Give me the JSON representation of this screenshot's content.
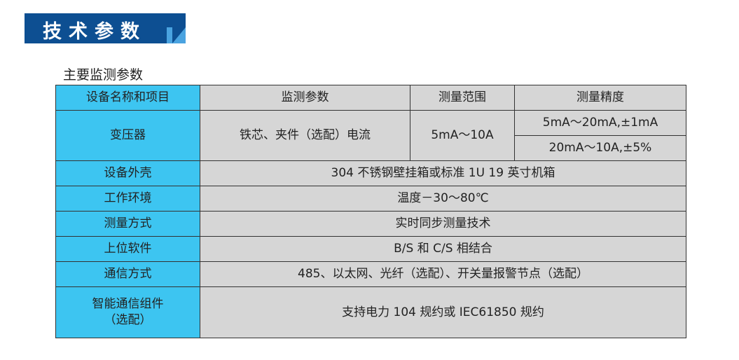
{
  "banner": {
    "title": "技术参数"
  },
  "subtitle": "主要监测参数",
  "table": {
    "headers": [
      "设备名称和项目",
      "监测参数",
      "测量范围",
      "测量精度"
    ],
    "transformer": {
      "name": "变压器",
      "param": "铁芯、夹件（选配）电流",
      "range": "5mA～10A",
      "accuracy": [
        "5mA～20mA,±1mA",
        "20mA～10A,±5%"
      ]
    },
    "rows": [
      {
        "name": "设备外壳",
        "value": "304 不锈钢壁挂箱或标准 1U 19 英寸机箱"
      },
      {
        "name": "工作环境",
        "value": "温度－30～80℃"
      },
      {
        "name": "测量方式",
        "value": "实时同步测量技术"
      },
      {
        "name": "上位软件",
        "value": "B/S 和 C/S 相结合"
      },
      {
        "name": "通信方式",
        "value": "485、以太网、光纤（选配）、开关量报警节点（选配）"
      },
      {
        "name": "智能通信组件\n（选配）",
        "value": "支持电力 104 规约或 IEC61850 规约"
      }
    ]
  },
  "colors": {
    "banner": "#0d4f92",
    "label_column": "#3dc5f1",
    "value_cells": "#d6d6d6"
  }
}
